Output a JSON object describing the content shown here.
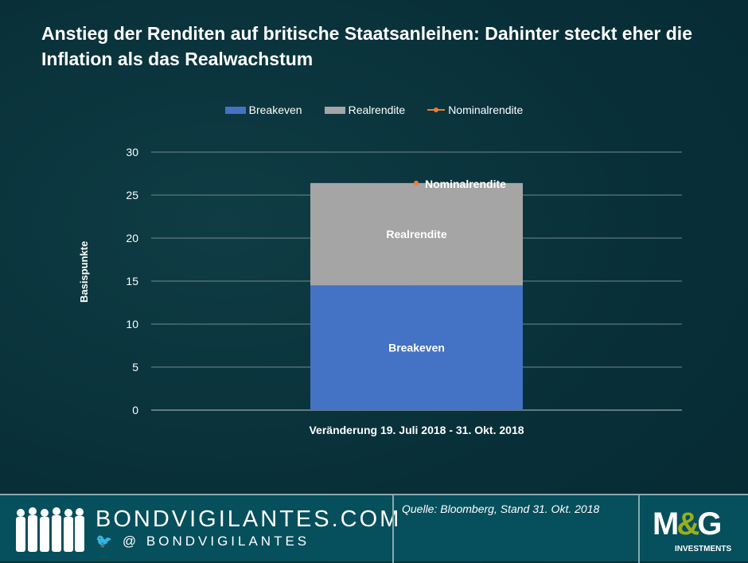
{
  "chart_data": {
    "type": "bar",
    "stacked": true,
    "title": "Anstieg der Renditen auf britische Staatsanleihen: Dahinter steckt eher die Inflation als das Realwachstum",
    "categories": [
      "Veränderung 19. Juli 2018 - 31. Okt. 2018"
    ],
    "series": [
      {
        "name": "Breakeven",
        "values": [
          14.5
        ],
        "color": "#4472c4",
        "label": "Breakeven"
      },
      {
        "name": "Realrendite",
        "values": [
          11.9
        ],
        "color": "#a5a5a5",
        "label": "Realrendite"
      },
      {
        "name": "Nominalrendite",
        "values": [
          26.4
        ],
        "color": "#ed7d31",
        "type": "line-marker",
        "label": "Nominalrendite"
      }
    ],
    "ylabel": "Basispunkte",
    "ylim": [
      0,
      30
    ],
    "yticks": [
      "0",
      "5",
      "10",
      "15",
      "20",
      "25",
      "30"
    ],
    "grid": true,
    "legend": "top"
  },
  "footer": {
    "site": "BONDVIGILANTES.COM",
    "twitter": "@ BONDVIGILANTES",
    "source": "Quelle: Bloomberg, Stand 31. Okt. 2018",
    "logo": "M&G",
    "logo_sub": "INVESTMENTS"
  }
}
